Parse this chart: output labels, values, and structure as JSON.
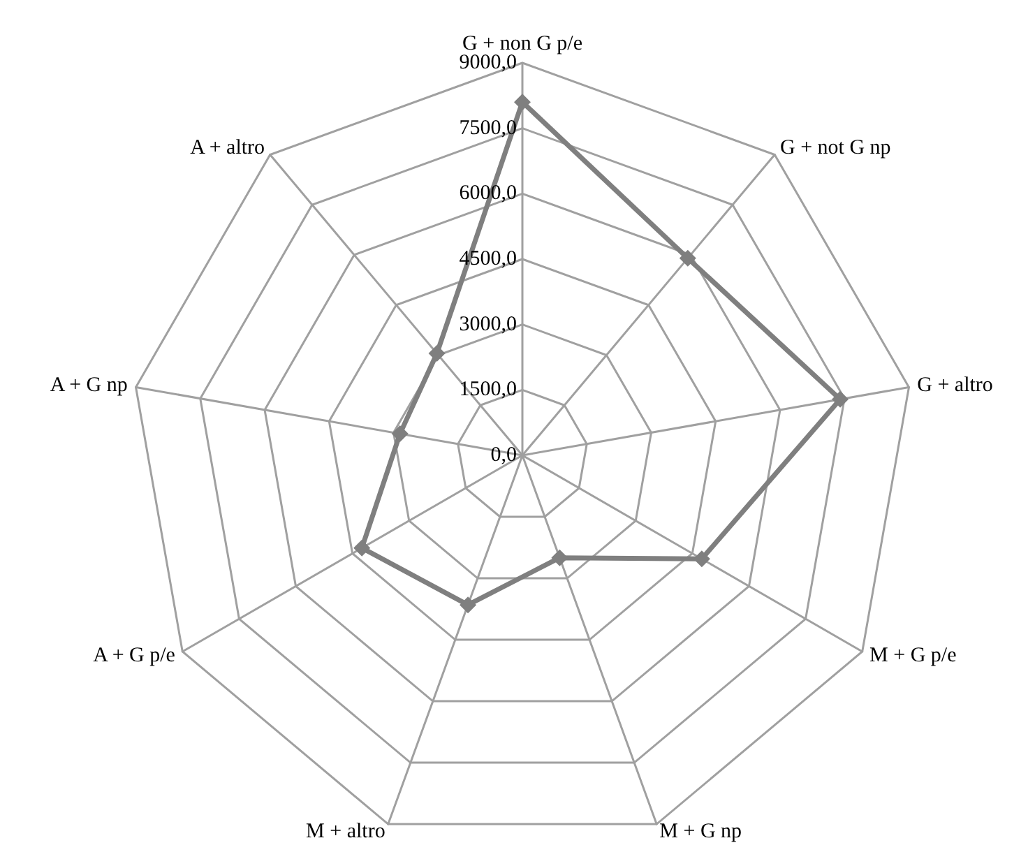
{
  "chart_data": {
    "type": "radar",
    "categories": [
      "G + non G p/e",
      "G + not G np",
      "G + altro",
      "M + G p/e",
      "M + G np",
      "M + altro",
      "A + G p/e",
      "A + G np",
      "A + altro"
    ],
    "series": [
      {
        "color": "#7f7f7f",
        "values": [
          8100,
          5900,
          7400,
          4750,
          2500,
          3650,
          4250,
          2850,
          3050
        ]
      }
    ],
    "ylim": [
      0,
      9000
    ],
    "yticks": [
      {
        "value": 0,
        "label": "0,0"
      },
      {
        "value": 1500,
        "label": "1500,0"
      },
      {
        "value": 3000,
        "label": "3000,0"
      },
      {
        "value": 4500,
        "label": "4500,0"
      },
      {
        "value": 6000,
        "label": "6000,0"
      },
      {
        "value": 7500,
        "label": "7500,0"
      },
      {
        "value": 9000,
        "label": "9000,0"
      }
    ],
    "marker": "diamond",
    "line_style": "solid"
  }
}
